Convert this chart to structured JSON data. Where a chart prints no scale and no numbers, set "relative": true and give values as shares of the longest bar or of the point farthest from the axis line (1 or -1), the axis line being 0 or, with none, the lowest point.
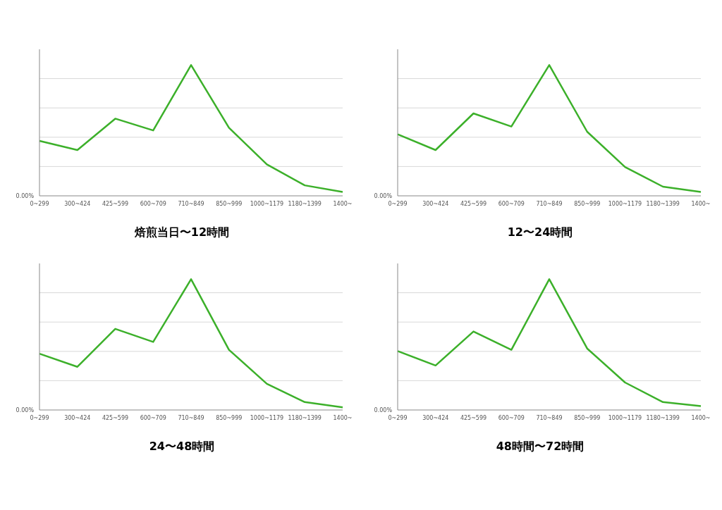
{
  "chart_data": [
    {
      "type": "line",
      "title": "焙煎当日〜12時間",
      "relative": true,
      "grid": "y",
      "annotations": [
        "0.00%"
      ],
      "categories": [
        "0~299",
        "300~424",
        "425~599",
        "600~709",
        "710~849",
        "850~999",
        "1000~1179",
        "1180~1399",
        "1400~"
      ],
      "series": [
        {
          "color": "#3cb02a",
          "values": [
            0.42,
            0.35,
            0.59,
            0.5,
            1,
            0.52,
            0.24,
            0.08,
            0.03
          ]
        }
      ]
    },
    {
      "type": "line",
      "title": "12〜24時間",
      "relative": true,
      "grid": "y",
      "annotations": [
        "0.00%"
      ],
      "categories": [
        "0~299",
        "300~424",
        "425~599",
        "600~709",
        "710~849",
        "850~999",
        "1000~1179",
        "1180~1399",
        "1400~"
      ],
      "series": [
        {
          "color": "#3cb02a",
          "values": [
            0.47,
            0.35,
            0.63,
            0.53,
            1,
            0.49,
            0.22,
            0.07,
            0.03
          ]
        }
      ]
    },
    {
      "type": "line",
      "title": "24〜48時間",
      "relative": true,
      "grid": "y",
      "annotations": [
        "0.00%"
      ],
      "categories": [
        "0~299",
        "300~424",
        "425~599",
        "600~709",
        "710~849",
        "850~999",
        "1000~1179",
        "1180~1399",
        "1400~"
      ],
      "series": [
        {
          "color": "#3cb02a",
          "values": [
            0.43,
            0.33,
            0.62,
            0.52,
            1,
            0.46,
            0.2,
            0.06,
            0.02
          ]
        }
      ]
    },
    {
      "type": "line",
      "title": "48時間〜72時間",
      "relative": true,
      "grid": "y",
      "annotations": [
        "0.00%"
      ],
      "categories": [
        "0~299",
        "300~424",
        "425~599",
        "600~709",
        "710~849",
        "850~999",
        "1000~1179",
        "1180~1399",
        "1400~"
      ],
      "series": [
        {
          "color": "#3cb02a",
          "values": [
            0.45,
            0.34,
            0.6,
            0.46,
            1,
            0.47,
            0.21,
            0.06,
            0.03
          ]
        }
      ]
    }
  ]
}
